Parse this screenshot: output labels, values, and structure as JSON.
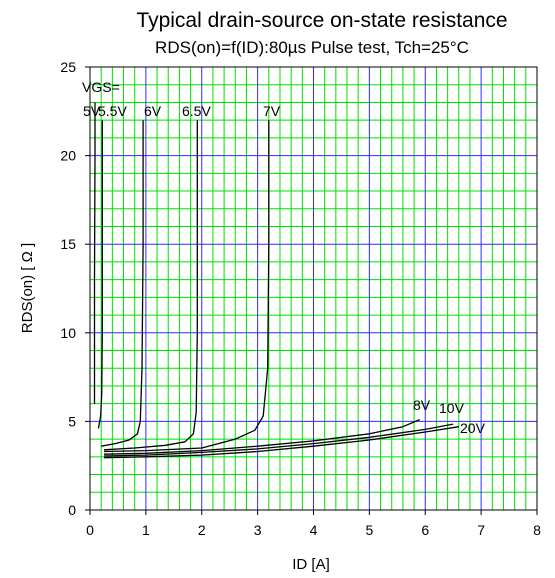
{
  "chart_data": {
    "type": "line",
    "title": "Typical drain-source on-state resistance",
    "subtitle": "RDS(on)=f(ID):80µs Pulse test, Tch=25°C",
    "xlabel": "ID [A]",
    "ylabel": "RDS(on) [ Ω ]",
    "xlim": [
      0,
      8
    ],
    "ylim": [
      0,
      25
    ],
    "x_ticks": [
      0,
      1,
      2,
      3,
      4,
      5,
      6,
      7,
      8
    ],
    "y_ticks": [
      0,
      5,
      10,
      15,
      20,
      25
    ],
    "grid": true,
    "grid_colors": {
      "minor": "#00e000",
      "major": "#2c2cff"
    },
    "legend_header": "VGS=",
    "series": [
      {
        "name": "5V",
        "points": [
          [
            0.08,
            6
          ],
          [
            0.08,
            13
          ],
          [
            0.09,
            20
          ],
          [
            0.09,
            23
          ]
        ]
      },
      {
        "name": "5.5V",
        "points": [
          [
            0.15,
            4.6
          ],
          [
            0.19,
            5.3
          ],
          [
            0.21,
            6.5
          ],
          [
            0.22,
            10
          ],
          [
            0.22,
            16
          ],
          [
            0.22,
            22
          ]
        ]
      },
      {
        "name": "6V",
        "points": [
          [
            0.2,
            3.6
          ],
          [
            0.45,
            3.75
          ],
          [
            0.7,
            3.95
          ],
          [
            0.85,
            4.3
          ],
          [
            0.9,
            5
          ],
          [
            0.93,
            8
          ],
          [
            0.95,
            15
          ],
          [
            0.95,
            22
          ]
        ]
      },
      {
        "name": "6.5V",
        "points": [
          [
            0.25,
            3.4
          ],
          [
            0.8,
            3.5
          ],
          [
            1.35,
            3.65
          ],
          [
            1.7,
            3.85
          ],
          [
            1.85,
            4.3
          ],
          [
            1.9,
            5.5
          ],
          [
            1.92,
            10
          ],
          [
            1.92,
            22
          ]
        ]
      },
      {
        "name": "7V",
        "points": [
          [
            0.25,
            3.3
          ],
          [
            1.0,
            3.35
          ],
          [
            2.0,
            3.5
          ],
          [
            2.6,
            4.0
          ],
          [
            2.95,
            4.5
          ],
          [
            3.1,
            5.3
          ],
          [
            3.18,
            8
          ],
          [
            3.2,
            15
          ],
          [
            3.2,
            22
          ]
        ]
      },
      {
        "name": "8V",
        "points": [
          [
            0.25,
            3.15
          ],
          [
            1.0,
            3.2
          ],
          [
            2.0,
            3.35
          ],
          [
            3.0,
            3.6
          ],
          [
            4.0,
            3.9
          ],
          [
            5.0,
            4.3
          ],
          [
            5.6,
            4.7
          ],
          [
            5.9,
            5.1
          ]
        ]
      },
      {
        "name": "10V",
        "points": [
          [
            0.25,
            3.05
          ],
          [
            1.0,
            3.1
          ],
          [
            2.0,
            3.25
          ],
          [
            3.0,
            3.45
          ],
          [
            4.0,
            3.75
          ],
          [
            5.0,
            4.1
          ],
          [
            6.0,
            4.55
          ],
          [
            6.5,
            4.85
          ]
        ]
      },
      {
        "name": "20V",
        "points": [
          [
            0.25,
            2.95
          ],
          [
            1.0,
            3.0
          ],
          [
            2.0,
            3.1
          ],
          [
            3.0,
            3.3
          ],
          [
            4.0,
            3.6
          ],
          [
            5.0,
            3.95
          ],
          [
            6.0,
            4.4
          ],
          [
            6.6,
            4.7
          ]
        ]
      }
    ]
  }
}
